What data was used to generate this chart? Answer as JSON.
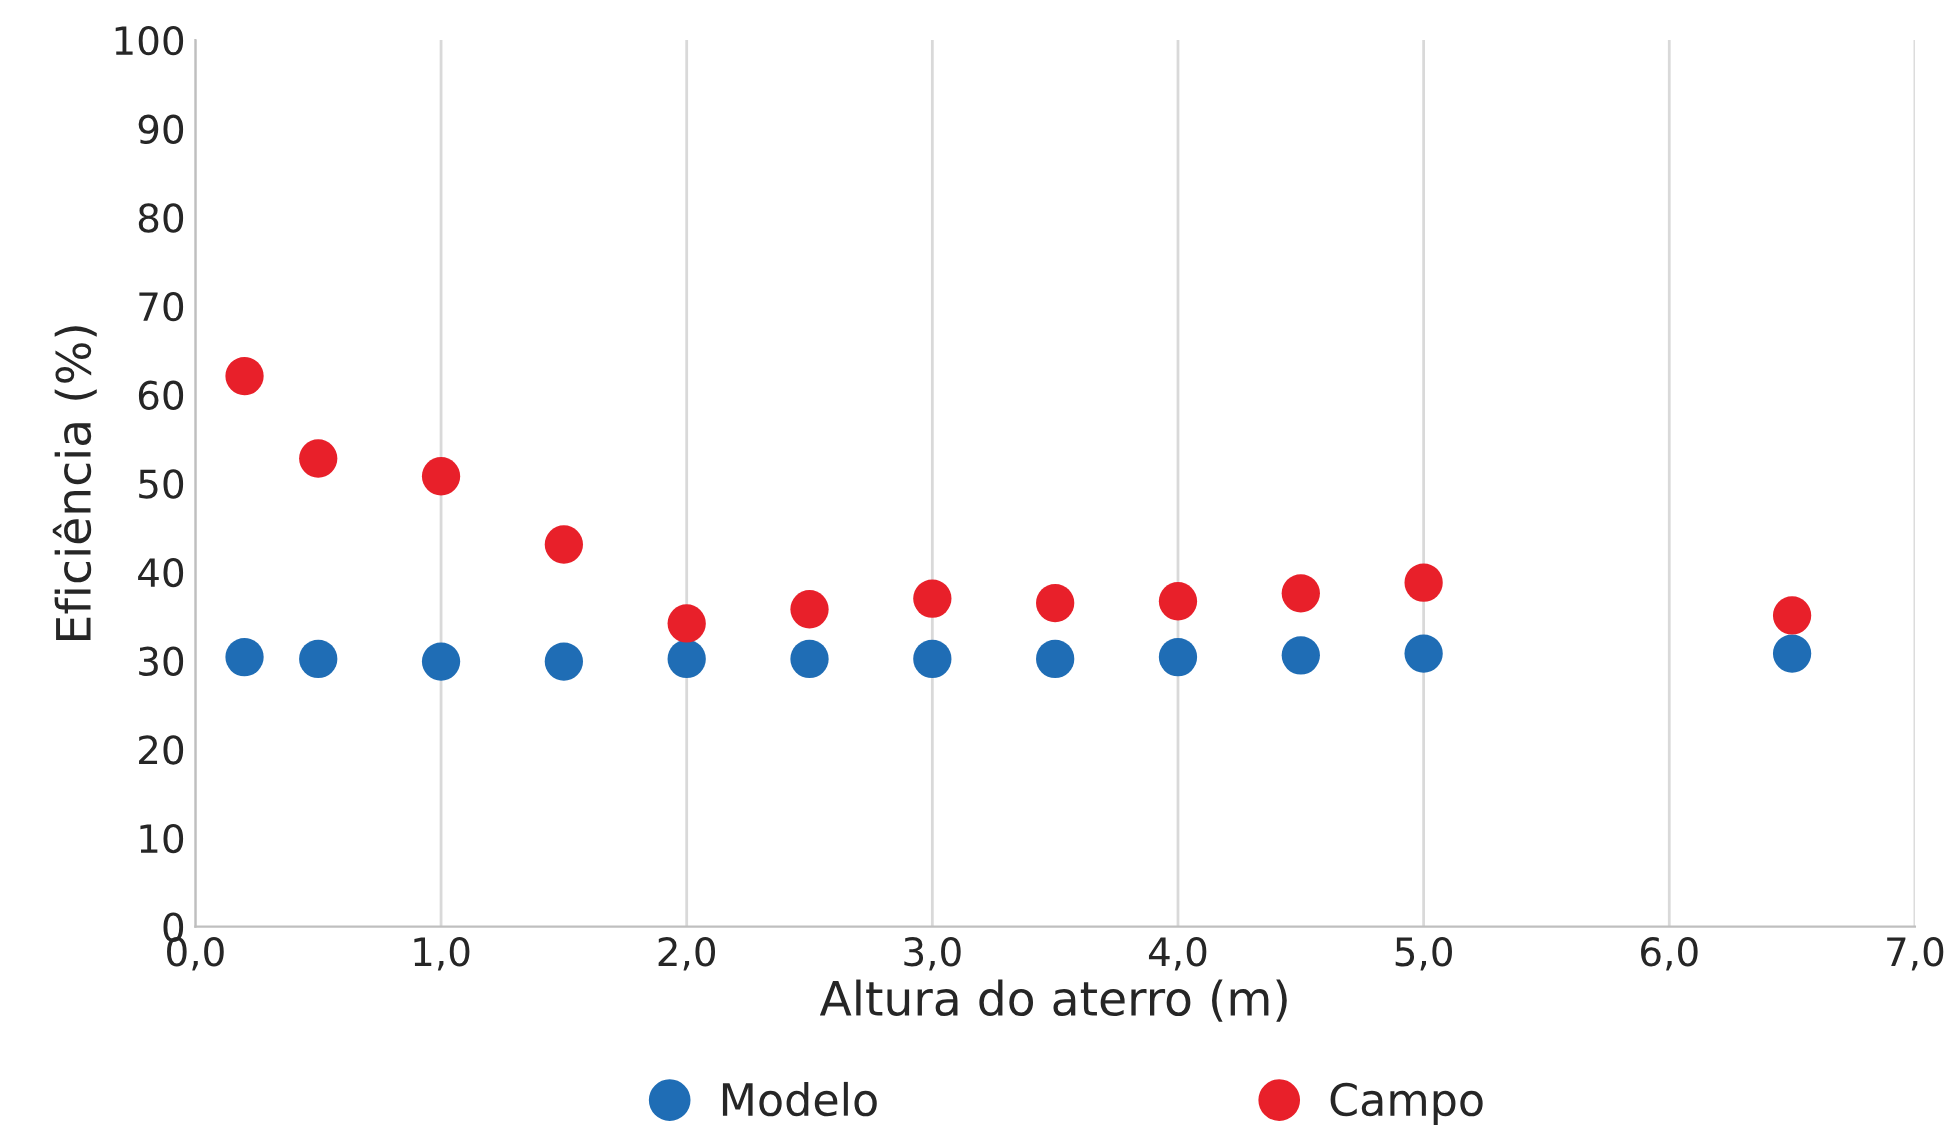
{
  "chart_data": {
    "type": "scatter",
    "xlabel": "Altura do aterro (m)",
    "ylabel": "Eficiência (%)",
    "x": [
      0.2,
      0.5,
      1.0,
      1.5,
      2.0,
      2.5,
      3.0,
      3.5,
      4.0,
      4.5,
      5.0,
      6.5
    ],
    "series": [
      {
        "name": "Modelo",
        "color": "#1f6db5",
        "values": [
          30.4,
          30.2,
          29.9,
          29.9,
          30.2,
          30.2,
          30.2,
          30.2,
          30.4,
          30.6,
          30.8,
          30.8
        ]
      },
      {
        "name": "Campo",
        "color": "#e8202a",
        "values": [
          62.1,
          52.8,
          50.8,
          43.1,
          34.2,
          35.8,
          37.0,
          36.5,
          36.7,
          37.6,
          38.8,
          35.1
        ]
      }
    ],
    "xlim": [
      0,
      7
    ],
    "ylim": [
      0,
      100
    ],
    "xticks": [
      {
        "value": 0,
        "label": "0,0"
      },
      {
        "value": 1,
        "label": "1,0"
      },
      {
        "value": 2,
        "label": "2,0"
      },
      {
        "value": 3,
        "label": "3,0"
      },
      {
        "value": 4,
        "label": "4,0"
      },
      {
        "value": 5,
        "label": "5,0"
      },
      {
        "value": 6,
        "label": "6,0"
      },
      {
        "value": 7,
        "label": "7,0"
      }
    ],
    "yticks": [
      0,
      10,
      20,
      30,
      40,
      50,
      60,
      70,
      80,
      90,
      100
    ],
    "grid": "x",
    "legend": "bottom",
    "marker": "circle"
  }
}
